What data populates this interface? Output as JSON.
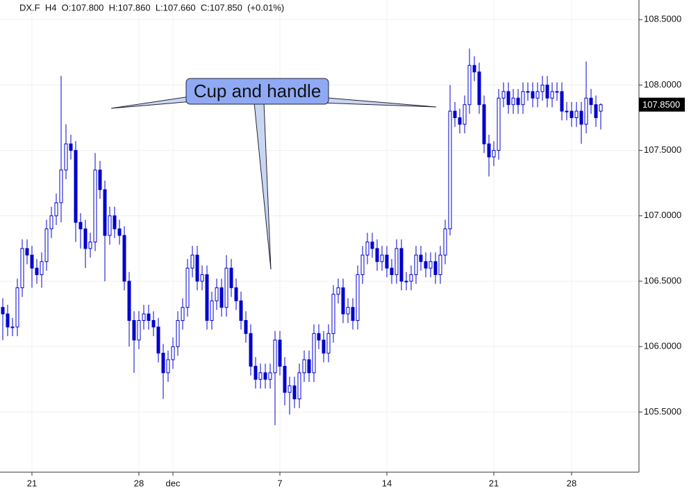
{
  "chart_data": {
    "type": "candlestick",
    "title": "DX.F  H4  O:107.800  H:107.860  L:107.660  C:107.850  (+0.01%)",
    "annotation": "Cup and handle",
    "color": "#0000cc",
    "grid": true,
    "ylim": [
      105.04,
      108.65
    ],
    "yticks": [
      {
        "value": 105.5,
        "label": "105.5000"
      },
      {
        "value": 106,
        "label": "106.0000"
      },
      {
        "value": 106.5,
        "label": "106.5000"
      },
      {
        "value": 107,
        "label": "107.0000"
      },
      {
        "value": 107.5,
        "label": "107.5000"
      },
      {
        "value": 108,
        "label": "108.0000"
      },
      {
        "value": 108.5,
        "label": "108.5000"
      }
    ],
    "last_price": {
      "value": 107.85,
      "label": "107.8500"
    },
    "categories": [
      null,
      null,
      null,
      null,
      null,
      null,
      "21",
      null,
      null,
      null,
      null,
      null,
      null,
      null,
      null,
      null,
      null,
      null,
      null,
      null,
      null,
      null,
      null,
      null,
      null,
      null,
      null,
      null,
      "28",
      null,
      null,
      null,
      null,
      null,
      null,
      "dec",
      null,
      null,
      null,
      null,
      null,
      null,
      null,
      null,
      null,
      null,
      null,
      null,
      null,
      null,
      null,
      null,
      null,
      null,
      null,
      null,
      null,
      "7",
      null,
      null,
      null,
      null,
      null,
      null,
      null,
      null,
      null,
      null,
      null,
      null,
      null,
      null,
      null,
      null,
      null,
      null,
      null,
      null,
      null,
      "14",
      null,
      null,
      null,
      null,
      null,
      null,
      null,
      null,
      null,
      null,
      null,
      null,
      null,
      null,
      null,
      null,
      null,
      null,
      null,
      null,
      null,
      "21",
      null,
      null,
      null,
      null,
      null,
      null,
      null,
      null,
      null,
      null,
      null,
      null,
      null,
      null,
      null,
      "28",
      null,
      null,
      null,
      null,
      null,
      null
    ],
    "open": [
      106.3,
      106.25,
      106.15,
      106.15,
      106.45,
      106.75,
      106.7,
      106.6,
      106.55,
      106.65,
      106.9,
      107.0,
      107.1,
      107.35,
      107.55,
      107.5,
      106.95,
      106.9,
      106.75,
      106.8,
      107.35,
      107.2,
      106.85,
      107.0,
      106.9,
      106.85,
      106.5,
      106.2,
      106.05,
      106.2,
      106.25,
      106.2,
      106.15,
      105.95,
      105.8,
      105.9,
      106.0,
      106.2,
      106.3,
      106.6,
      106.7,
      106.5,
      106.55,
      106.2,
      106.35,
      106.45,
      106.3,
      106.6,
      106.45,
      106.35,
      106.2,
      106.1,
      105.85,
      105.75,
      105.8,
      105.75,
      105.8,
      106.05,
      105.85,
      105.65,
      105.7,
      105.6,
      105.8,
      105.9,
      105.8,
      106.1,
      106.05,
      105.95,
      106.1,
      106.4,
      106.45,
      106.25,
      106.3,
      106.2,
      106.55,
      106.7,
      106.8,
      106.75,
      106.65,
      106.7,
      106.6,
      106.55,
      106.75,
      106.5,
      106.5,
      106.55,
      106.7,
      106.65,
      106.6,
      106.65,
      106.55,
      106.7,
      106.9,
      107.8,
      107.75,
      107.7,
      107.85,
      108.15,
      108.1,
      107.85,
      107.55,
      107.45,
      107.5,
      107.9,
      107.95,
      107.85,
      107.9,
      107.85,
      107.95,
      107.95,
      107.9,
      107.95,
      108.0,
      107.9,
      107.95,
      107.95,
      107.8,
      107.8,
      107.75,
      107.8,
      107.7,
      107.9,
      107.85,
      107.8
    ],
    "high": [
      106.37,
      106.32,
      106.22,
      106.52,
      106.82,
      106.82,
      106.77,
      106.67,
      106.72,
      106.97,
      107.07,
      107.17,
      108.07,
      107.7,
      107.62,
      107.57,
      107.02,
      106.97,
      106.87,
      107.48,
      107.42,
      107.27,
      107.07,
      107.07,
      106.97,
      106.92,
      106.57,
      106.27,
      106.27,
      106.32,
      106.32,
      106.27,
      106.22,
      106.02,
      105.97,
      106.07,
      106.27,
      106.37,
      106.67,
      106.77,
      106.77,
      106.62,
      106.62,
      106.42,
      106.52,
      106.52,
      106.7,
      106.67,
      106.52,
      106.42,
      106.27,
      106.17,
      105.92,
      105.87,
      105.87,
      105.87,
      106.12,
      106.12,
      105.92,
      105.77,
      105.77,
      105.87,
      105.97,
      105.97,
      106.17,
      106.17,
      106.12,
      106.17,
      106.47,
      106.52,
      106.52,
      106.37,
      106.37,
      106.62,
      106.77,
      106.87,
      106.87,
      106.82,
      106.77,
      106.77,
      106.67,
      106.82,
      106.82,
      106.57,
      106.62,
      106.77,
      106.77,
      106.72,
      106.72,
      106.72,
      106.77,
      106.97,
      108.0,
      107.87,
      107.82,
      107.92,
      108.28,
      108.22,
      108.17,
      107.92,
      107.62,
      107.57,
      107.97,
      108.02,
      108.02,
      107.97,
      107.97,
      108.02,
      108.02,
      108.02,
      108.02,
      108.07,
      108.07,
      108.02,
      108.02,
      108.02,
      107.87,
      107.87,
      107.87,
      107.87,
      108.18,
      107.97,
      107.92,
      107.86
    ],
    "low": [
      106.05,
      106.08,
      106.08,
      106.08,
      106.38,
      106.63,
      106.45,
      106.48,
      106.45,
      106.58,
      106.83,
      106.93,
      106.95,
      107.28,
      107.43,
      106.8,
      106.75,
      106.6,
      106.68,
      106.73,
      107.13,
      106.5,
      106.78,
      106.83,
      106.78,
      106.43,
      106.0,
      105.8,
      105.98,
      106.13,
      106.13,
      106.08,
      105.88,
      105.6,
      105.73,
      105.83,
      105.93,
      106.13,
      106.23,
      106.53,
      106.43,
      106.43,
      106.13,
      106.13,
      106.28,
      106.23,
      106.23,
      106.38,
      106.28,
      106.13,
      106.03,
      105.78,
      105.68,
      105.68,
      105.68,
      105.68,
      105.4,
      105.78,
      105.55,
      105.48,
      105.53,
      105.53,
      105.73,
      105.73,
      105.73,
      105.98,
      105.88,
      105.88,
      106.03,
      106.33,
      106.18,
      106.18,
      106.13,
      106.13,
      106.48,
      106.63,
      106.68,
      106.58,
      106.58,
      106.53,
      106.48,
      106.48,
      106.43,
      106.43,
      106.43,
      106.48,
      106.58,
      106.53,
      106.53,
      106.48,
      106.48,
      106.63,
      106.85,
      107.68,
      107.63,
      107.63,
      107.78,
      108.03,
      107.78,
      107.48,
      107.3,
      107.38,
      107.43,
      107.83,
      107.78,
      107.78,
      107.78,
      107.78,
      107.88,
      107.83,
      107.83,
      107.88,
      107.83,
      107.83,
      107.88,
      107.73,
      107.73,
      107.68,
      107.68,
      107.55,
      107.63,
      107.78,
      107.68,
      107.66
    ],
    "close": [
      106.25,
      106.15,
      106.15,
      106.45,
      106.75,
      106.7,
      106.6,
      106.55,
      106.65,
      106.9,
      107.0,
      107.1,
      107.35,
      107.55,
      107.5,
      106.95,
      106.9,
      106.75,
      106.8,
      107.35,
      107.2,
      106.85,
      107.0,
      106.9,
      106.85,
      106.5,
      106.2,
      106.05,
      106.2,
      106.25,
      106.2,
      106.15,
      105.95,
      105.8,
      105.9,
      106.0,
      106.2,
      106.3,
      106.6,
      106.7,
      106.5,
      106.55,
      106.2,
      106.35,
      106.45,
      106.3,
      106.6,
      106.45,
      106.35,
      106.2,
      106.1,
      105.85,
      105.75,
      105.8,
      105.75,
      105.8,
      106.05,
      105.85,
      105.65,
      105.7,
      105.6,
      105.8,
      105.9,
      105.8,
      106.1,
      106.05,
      105.95,
      106.1,
      106.4,
      106.45,
      106.25,
      106.3,
      106.2,
      106.55,
      106.7,
      106.8,
      106.75,
      106.65,
      106.7,
      106.6,
      106.55,
      106.75,
      106.5,
      106.5,
      106.55,
      106.7,
      106.65,
      106.6,
      106.65,
      106.55,
      106.7,
      106.9,
      107.8,
      107.75,
      107.7,
      107.85,
      108.15,
      108.1,
      107.85,
      107.55,
      107.45,
      107.5,
      107.9,
      107.95,
      107.85,
      107.9,
      107.85,
      107.95,
      107.95,
      107.9,
      107.95,
      108.0,
      107.9,
      107.95,
      107.95,
      107.8,
      107.8,
      107.75,
      107.8,
      107.7,
      107.9,
      107.85,
      107.75,
      107.85
    ]
  }
}
